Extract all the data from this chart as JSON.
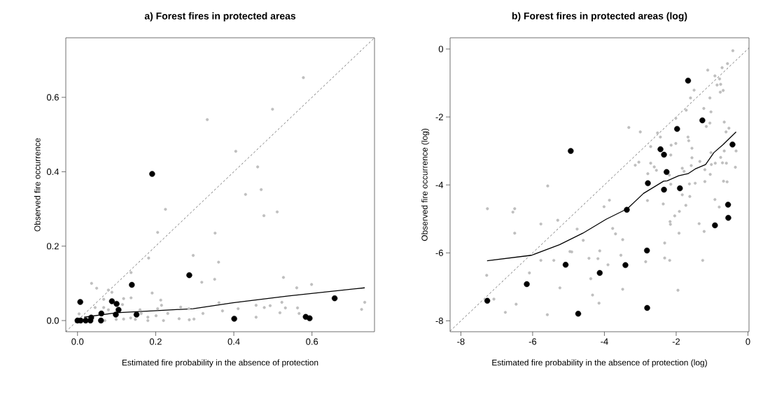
{
  "chart_data": [
    {
      "type": "scatter",
      "title": "a) Forest fires in protected areas",
      "xlabel": "Estimated fire probability in the absence of protection",
      "ylabel": "Observed fire occurrence",
      "xlim": [
        -0.03,
        0.76
      ],
      "ylim": [
        -0.03,
        0.76
      ],
      "xticks": [
        {
          "value": 0,
          "label": "0.0"
        },
        {
          "value": 0.2,
          "label": "0.2"
        },
        {
          "value": 0.4,
          "label": "0.4"
        },
        {
          "value": 0.6,
          "label": "0.6"
        }
      ],
      "yticks": [
        {
          "value": 0,
          "label": "0.0"
        },
        {
          "value": 0.2,
          "label": "0.2"
        },
        {
          "value": 0.4,
          "label": "0.4"
        },
        {
          "value": 0.6,
          "label": "0.6"
        }
      ],
      "marker": "circle",
      "series": [
        {
          "type": "line",
          "marker": "none",
          "line_style": "dashed",
          "color": "#404040",
          "x": [
            -0.03,
            0.76
          ],
          "values": [
            -0.03,
            0.76
          ]
        },
        {
          "color": "#bebebe",
          "x": [
            0.578,
            0.499,
            0.332,
            0.405,
            0.461,
            0.47,
            0.43,
            0.511,
            0.477,
            0.225,
            0.205,
            0.352,
            0.296,
            0.361,
            0.182,
            0.137,
            0.527,
            0.318,
            0.351,
            0.599,
            0.561,
            0.036,
            0.049,
            0.079,
            0.088,
            0.191,
            0.213,
            0.067,
            0.118,
            0.137,
            0.115,
            0.215,
            0.362,
            0.523,
            0.735,
            0.457,
            0.493,
            0.478,
            0.532,
            0.563,
            0.411,
            0.264,
            0.285,
            0.205,
            0.045,
            0.067,
            0.079,
            0.16,
            0.231,
            0.321,
            0.371,
            0.518,
            0.567,
            0.727,
            0.004,
            0.118,
            0.136,
            0.148,
            0.18,
            0.201,
            0.18,
            0.22,
            0.26,
            0.286,
            0.298,
            0.457,
            0.099,
            0.07,
            0.163
          ],
          "values": [
            0.653,
            0.568,
            0.54,
            0.455,
            0.413,
            0.352,
            0.339,
            0.292,
            0.282,
            0.299,
            0.237,
            0.235,
            0.175,
            0.157,
            0.168,
            0.129,
            0.116,
            0.103,
            0.111,
            0.097,
            0.088,
            0.1,
            0.087,
            0.082,
            0.076,
            0.074,
            0.055,
            0.057,
            0.059,
            0.061,
            0.043,
            0.041,
            0.048,
            0.049,
            0.049,
            0.041,
            0.04,
            0.035,
            0.034,
            0.034,
            0.032,
            0.036,
            0.032,
            0.032,
            0.035,
            0.035,
            0.029,
            0.029,
            0.019,
            0.019,
            0.026,
            0.021,
            0.019,
            0.03,
            0.018,
            0.004,
            0.007,
            0.003,
            0.009,
            0.013,
            0.0,
            0.0,
            0.005,
            0.002,
            0.004,
            0.009,
            0.003,
            0.0,
            0.019
          ]
        },
        {
          "color": "#000000",
          "x": [
            0.191,
            0.286,
            0.139,
            0.007,
            0.088,
            0.1,
            0.105,
            0.098,
            0.151,
            0.061,
            0.06,
            0.035,
            0.0,
            0.008,
            0.021,
            0.033,
            0.401,
            0.584,
            0.594,
            0.658
          ],
          "values": [
            0.394,
            0.122,
            0.096,
            0.05,
            0.052,
            0.045,
            0.029,
            0.016,
            0.016,
            0.019,
            0.0,
            0.008,
            0.0,
            0.0,
            0.0,
            0.0,
            0.005,
            0.01,
            0.006,
            0.06
          ]
        },
        {
          "type": "line",
          "marker": "none",
          "color": "#000000",
          "x": [
            0.017,
            0.1,
            0.195,
            0.296,
            0.398,
            0.54,
            0.735
          ],
          "values": [
            0.009,
            0.021,
            0.026,
            0.032,
            0.048,
            0.066,
            0.088
          ]
        }
      ]
    },
    {
      "type": "scatter",
      "title": "b) Forest fires in protected areas (log)",
      "xlabel": "Estimated fire probability in the absence of protection (log)",
      "ylabel": "Observed fire occurrence (log)",
      "xlim": [
        -8.3,
        0.03
      ],
      "ylim": [
        -8.32,
        0.33
      ],
      "xticks": [
        -8,
        -6,
        -4,
        -2,
        0
      ],
      "yticks": [
        -8,
        -6,
        -4,
        -2,
        0
      ],
      "marker": "circle",
      "series": [
        {
          "type": "line",
          "marker": "none",
          "line_style": "dashed",
          "color": "#404040",
          "x": [
            -8.3,
            0.03
          ],
          "values": [
            -8.3,
            0.03
          ]
        },
        {
          "color": "#bebebe",
          "x": [
            -0.42,
            -0.57,
            -0.72,
            -1.12,
            -0.92,
            -0.79,
            -0.86,
            -0.76,
            -0.69,
            -0.77,
            -1.5,
            -1.6,
            -1.06,
            -1.72,
            -1.23,
            -1.03,
            -1.06,
            -1.16,
            -0.66,
            -0.53,
            -0.61,
            -2.01,
            -3.32,
            -3.0,
            -2.52,
            -2.44,
            -1.67,
            -1.65,
            -1.56,
            -1.03,
            -0.33,
            -0.66,
            -2.14,
            -2.01,
            -2.71,
            -2.15,
            -1.56,
            -1.34,
            -1.58,
            -1.02,
            -0.91,
            -0.76,
            -0.71,
            -0.6,
            -0.35,
            -1.2,
            -1.05,
            -3.04,
            -3.14,
            -2.71,
            -2.61,
            -2.55,
            -2.79,
            -2.19,
            -1.83,
            -1.78,
            -1.63,
            -1.47,
            -2.15,
            -1.2,
            -0.68,
            -0.58,
            -1.83,
            -1.62,
            -2.8,
            -2.36,
            -1.73,
            -0.92,
            -0.8,
            -1.91,
            -2.04,
            -2.17,
            -2.16,
            -1.36,
            -1.22,
            -1.92,
            -2.32,
            -2.32,
            -2.18,
            -1.26,
            -1.95,
            -3.86,
            -4.01,
            -3.77,
            -3.69,
            -3.49,
            -4.76,
            -4.59,
            -4.96,
            -4.91,
            -4.13,
            -3.54,
            -3.9,
            -4.43,
            -4.18,
            -5.41,
            -5.77,
            -2.85,
            -4.38,
            -5.24,
            -3.49,
            -4.33,
            -4.15,
            -5.58,
            -5.3,
            -5.77,
            -6.5,
            -6.55,
            -6.5,
            -7.26,
            -7.28,
            -6.09,
            -7.08,
            -6.46,
            -6.76,
            -5.59
          ],
          "values": [
            -0.05,
            -0.43,
            -0.55,
            -0.62,
            -0.79,
            -0.88,
            -1.06,
            -1.04,
            -1.22,
            -1.27,
            -1.21,
            -1.44,
            -1.44,
            -1.8,
            -1.75,
            -1.85,
            -2.18,
            -2.28,
            -2.15,
            -2.33,
            -2.44,
            -2.04,
            -2.31,
            -2.44,
            -2.47,
            -2.59,
            -2.59,
            -2.7,
            -2.92,
            -3.05,
            -3.0,
            -3.0,
            -2.83,
            -2.78,
            -2.87,
            -3.12,
            -3.2,
            -3.31,
            -3.43,
            -3.4,
            -3.36,
            -3.19,
            -3.35,
            -3.36,
            -3.48,
            -3.55,
            -3.69,
            -3.33,
            -3.42,
            -3.36,
            -3.47,
            -3.57,
            -3.67,
            -3.71,
            -3.51,
            -3.6,
            -3.97,
            -3.95,
            -3.98,
            -3.9,
            -3.89,
            -3.91,
            -4.29,
            -4.34,
            -4.46,
            -4.56,
            -4.6,
            -4.43,
            -4.65,
            -4.78,
            -4.91,
            -5.08,
            -5.16,
            -5.14,
            -5.37,
            -5.42,
            -5.71,
            -6.15,
            -6.22,
            -6.22,
            -7.1,
            -4.45,
            -4.64,
            -5.28,
            -5.44,
            -5.61,
            -5.3,
            -5.63,
            -5.96,
            -5.97,
            -5.94,
            -6.07,
            -6.35,
            -6.16,
            -6.17,
            -6.22,
            -6.22,
            -6.26,
            -6.76,
            -7.03,
            -7.07,
            -7.24,
            -7.48,
            -4.03,
            -5.04,
            -5.15,
            -4.7,
            -4.8,
            -5.42,
            -4.7,
            -6.66,
            -6.59,
            -7.36,
            -7.51,
            -7.75,
            -7.82
          ]
        },
        {
          "color": "#000000",
          "x": [
            -1.668,
            -1.27,
            -1.974,
            -4.938,
            -0.43,
            -2.437,
            -2.339,
            -2.267,
            -2.788,
            -2.339,
            -1.896,
            -3.375,
            -0.554,
            -0.547,
            -0.919,
            -2.814,
            -5.081,
            -3.414,
            -4.13,
            -6.163,
            -7.264,
            -4.73,
            -2.808
          ],
          "values": [
            -0.93,
            -2.1,
            -2.35,
            -3.0,
            -2.81,
            -2.95,
            -3.11,
            -3.62,
            -3.95,
            -4.14,
            -4.1,
            -4.73,
            -4.58,
            -4.97,
            -5.19,
            -5.93,
            -6.35,
            -6.36,
            -6.59,
            -6.92,
            -7.41,
            -7.79,
            -7.62
          ]
        },
        {
          "type": "line",
          "marker": "none",
          "color": "#000000",
          "x": [
            -7.27,
            -6.03,
            -5.25,
            -4.6,
            -3.95,
            -3.36,
            -2.91,
            -2.35,
            -2.25,
            -1.93,
            -1.67,
            -1.47,
            -1.18,
            -0.95,
            -0.69,
            -0.33
          ],
          "values": [
            -6.23,
            -6.07,
            -5.76,
            -5.42,
            -5.01,
            -4.7,
            -4.25,
            -3.89,
            -3.88,
            -3.73,
            -3.67,
            -3.53,
            -3.4,
            -3.05,
            -2.81,
            -2.44
          ]
        }
      ]
    }
  ]
}
